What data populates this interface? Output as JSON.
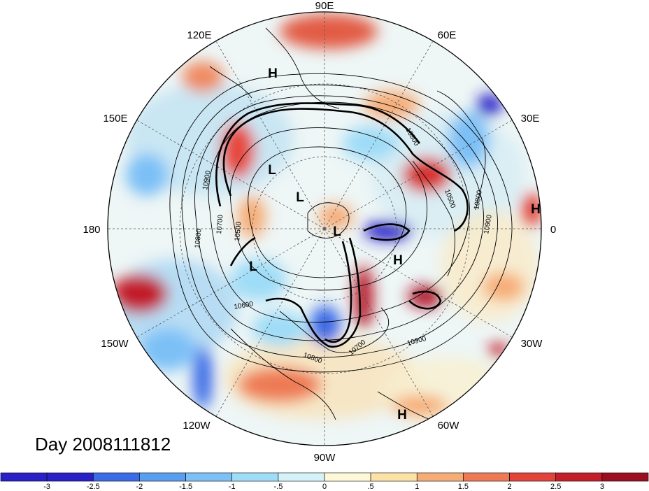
{
  "title": "Day 2008111812",
  "map": {
    "projection": "polar stereographic (north pole)",
    "longitude_labels": {
      "lon_90e": "90E",
      "lon_60e": "60E",
      "lon_30e": "30E",
      "lon_0": "0",
      "lon_30w": "30W",
      "lon_60w": "60W",
      "lon_90w": "90W",
      "lon_120w": "120W",
      "lon_150w": "150W",
      "lon_180": "180",
      "lon_150e": "150E",
      "lon_120e": "120E"
    },
    "pressure_centers": {
      "h1": "H",
      "h2": "H",
      "h3": "H",
      "h4": "H",
      "l1": "L",
      "l2": "L",
      "l3": "L",
      "l4": "L"
    },
    "contour_labels": {
      "c1": "10800",
      "c2": "10500",
      "c3": "10900",
      "c4": "10700",
      "c5": "10500",
      "c6": "10800",
      "c7": "10600",
      "c8": "10800",
      "c9": "10700",
      "c10": "10900",
      "c11": "10900",
      "c12": "10800"
    }
  },
  "colorbar": {
    "ticks": [
      "-3",
      "-2.5",
      "-2",
      "-1.5",
      "-1",
      "-.5",
      "0",
      ".5",
      "1",
      "1.5",
      "2",
      "2.5",
      "3"
    ],
    "colors": [
      "#2a20c8",
      "#3b6be6",
      "#5a9ef0",
      "#7cc0f6",
      "#9fdcf7",
      "#d5f2f8",
      "#fff8d8",
      "#fbe2a6",
      "#f6ac76",
      "#ee7a55",
      "#e2443a",
      "#c21f2a",
      "#9c0f22"
    ]
  }
}
